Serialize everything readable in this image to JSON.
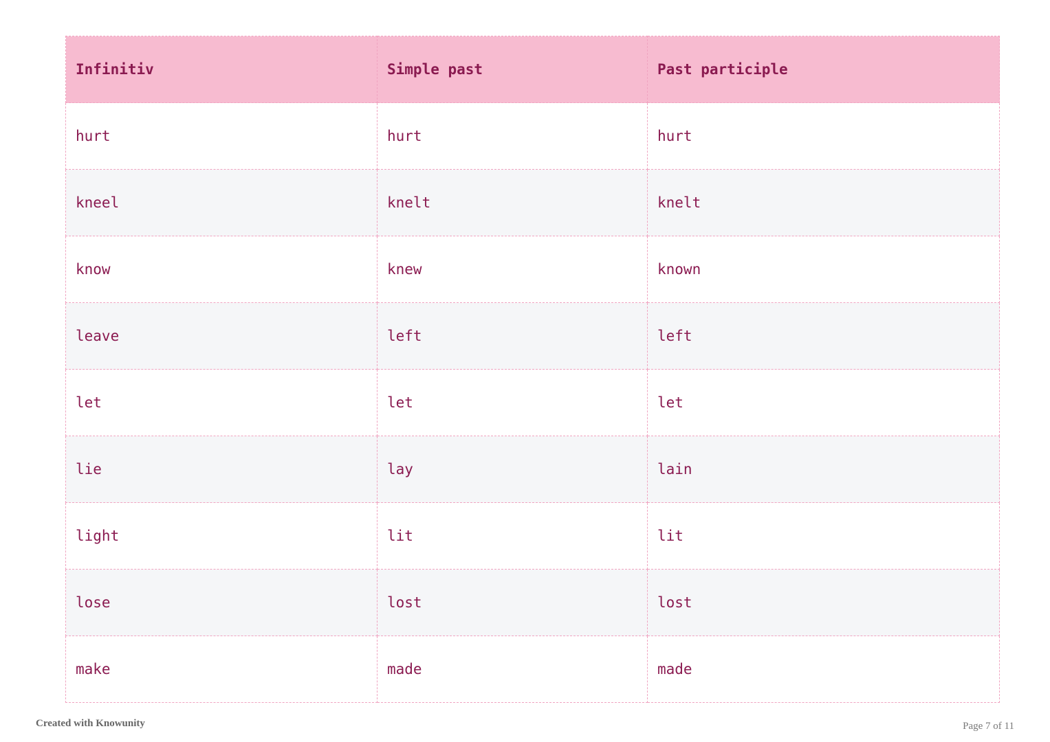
{
  "table": {
    "headers": [
      "Infinitiv",
      "Simple past",
      "Past participle"
    ],
    "rows": [
      [
        "hurt",
        "hurt",
        "hurt"
      ],
      [
        "kneel",
        "knelt",
        "knelt"
      ],
      [
        "know",
        "knew",
        "known"
      ],
      [
        "leave",
        "left",
        "left"
      ],
      [
        "let",
        "let",
        "let"
      ],
      [
        "lie",
        "lay",
        "lain"
      ],
      [
        "light",
        "lit",
        "lit"
      ],
      [
        "lose",
        "lost",
        "lost"
      ],
      [
        "make",
        "made",
        "made"
      ]
    ]
  },
  "footer": {
    "credit": "Created with Knowunity",
    "page": "Page 7 of 11"
  },
  "colors": {
    "header_bg": "#f7bbd0",
    "text": "#8a1a50",
    "border": "#f0a3c0",
    "stripe": "#f5f6f8"
  }
}
